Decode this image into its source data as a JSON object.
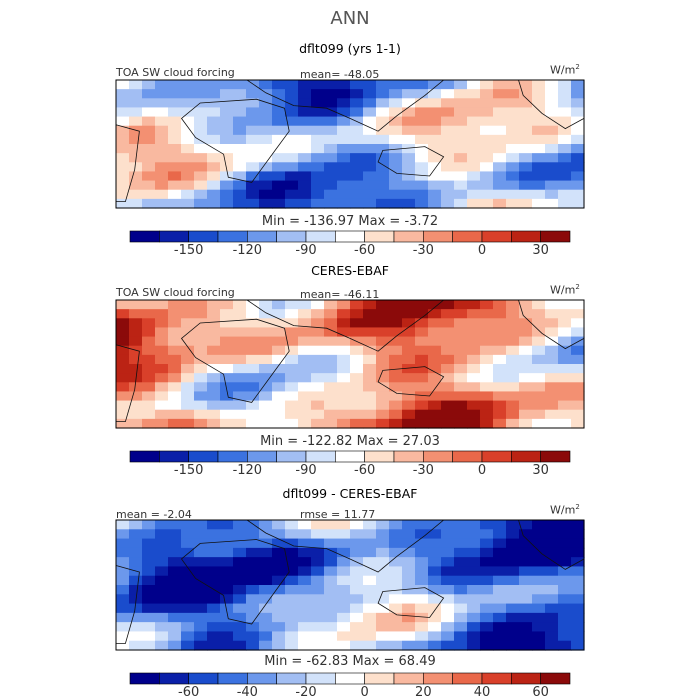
{
  "figure": {
    "title": "ANN"
  },
  "colors": {
    "scale": [
      "#00008b",
      "#0a1fa8",
      "#1a4ccc",
      "#3b72e0",
      "#6c98ec",
      "#a2bef3",
      "#d2e2fa",
      "#ffffff",
      "#fde0cc",
      "#f9b9a0",
      "#f39072",
      "#e9684a",
      "#d9402a",
      "#bb2314",
      "#8b0a0a"
    ],
    "land_outline": "#111111"
  },
  "chart_data": [
    {
      "type": "heatmap",
      "panel_title": "dflt099 (yrs 1-1)",
      "variable_label": "TOA SW cloud forcing",
      "mean_text": "mean= -48.05",
      "units_base": "W/m",
      "units_exp": "2",
      "min_max_text": "Min = -136.97 Max =  -3.72",
      "colorbar": {
        "levels": 15,
        "tick_labels": [
          "-150",
          "-120",
          "-90",
          "-60",
          "-30",
          "0",
          "30"
        ],
        "tick_positions": [
          2,
          4,
          6,
          8,
          10,
          12,
          14
        ]
      },
      "field_bias": -0.25
    },
    {
      "type": "heatmap",
      "panel_title": "CERES-EBAF",
      "variable_label": "TOA SW cloud forcing",
      "mean_text": "mean= -46.11",
      "units_base": "W/m",
      "units_exp": "2",
      "min_max_text": "Min = -122.82 Max =  27.03",
      "colorbar": {
        "levels": 15,
        "tick_labels": [
          "-150",
          "-120",
          "-90",
          "-60",
          "-30",
          "0",
          "30"
        ],
        "tick_positions": [
          2,
          4,
          6,
          8,
          10,
          12,
          14
        ]
      },
      "field_bias": 0.3
    },
    {
      "type": "heatmap",
      "panel_title": "dflt099 - CERES-EBAF",
      "mean_text": "mean =  -2.04",
      "rmse_text": "rmse =  11.77",
      "units_base": "W/m",
      "units_exp": "2",
      "min_max_text": "Min = -62.83 Max =  68.49",
      "colorbar": {
        "levels": 15,
        "tick_labels": [
          "-60",
          "-40",
          "-20",
          "0",
          "20",
          "40",
          "60"
        ],
        "tick_positions": [
          2,
          4,
          6,
          8,
          10,
          12,
          14
        ]
      },
      "field_bias": -0.5
    }
  ]
}
